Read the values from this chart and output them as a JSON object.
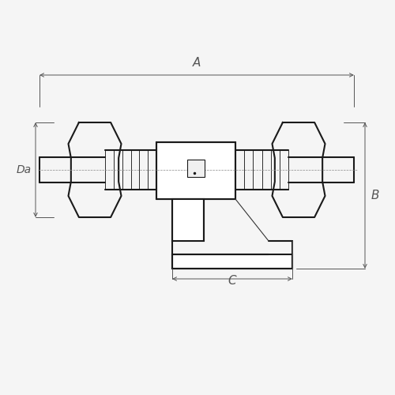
{
  "bg_color": "#f5f5f5",
  "line_color": "#1a1a1a",
  "dim_color": "#555555",
  "line_width": 1.5,
  "thin_line": 0.8,
  "dim_line": 0.7,
  "fig_size": [
    5.0,
    5.0
  ],
  "dpi": 100,
  "labels": {
    "A": "A",
    "B": "B",
    "C": "C",
    "Da": "Da"
  }
}
